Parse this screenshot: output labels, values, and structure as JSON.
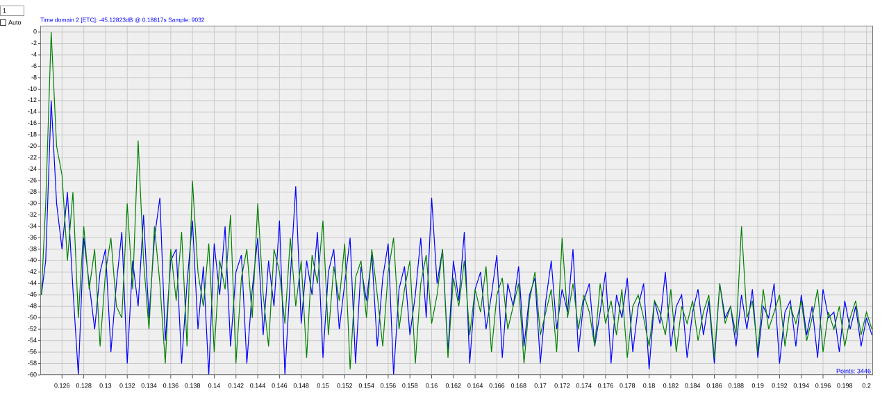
{
  "ui": {
    "input_value": "1",
    "checkbox_label": "Auto"
  },
  "chart_data": {
    "type": "line",
    "title": "Time domain 2 [ETC]:   -45.12823dB @ 0.18817s   Sample: 9032",
    "annotation": "Points: 3446",
    "x": [
      0.1241,
      0.1245,
      0.125,
      0.1255,
      0.126,
      0.1265,
      0.127,
      0.1275,
      0.128,
      0.1285,
      0.129,
      0.1295,
      0.13,
      0.1305,
      0.131,
      0.1315,
      0.132,
      0.1325,
      0.133,
      0.1335,
      0.134,
      0.1345,
      0.135,
      0.1355,
      0.136,
      0.1365,
      0.137,
      0.1375,
      0.138,
      0.1385,
      0.139,
      0.1395,
      0.14,
      0.1405,
      0.141,
      0.1415,
      0.142,
      0.1425,
      0.143,
      0.1435,
      0.144,
      0.1445,
      0.145,
      0.1455,
      0.146,
      0.1465,
      0.147,
      0.1475,
      0.148,
      0.1485,
      0.149,
      0.1495,
      0.15,
      0.1505,
      0.151,
      0.1515,
      0.152,
      0.1525,
      0.153,
      0.1535,
      0.154,
      0.1545,
      0.155,
      0.1555,
      0.156,
      0.1565,
      0.157,
      0.1575,
      0.158,
      0.1585,
      0.159,
      0.1595,
      0.16,
      0.1605,
      0.161,
      0.1615,
      0.162,
      0.1625,
      0.163,
      0.1635,
      0.164,
      0.1645,
      0.165,
      0.1655,
      0.166,
      0.1665,
      0.167,
      0.1675,
      0.168,
      0.1685,
      0.169,
      0.1695,
      0.17,
      0.1705,
      0.171,
      0.1715,
      0.172,
      0.1725,
      0.173,
      0.1735,
      0.174,
      0.1745,
      0.175,
      0.1755,
      0.176,
      0.1765,
      0.177,
      0.1775,
      0.178,
      0.1785,
      0.179,
      0.1795,
      0.18,
      0.1805,
      0.181,
      0.1815,
      0.182,
      0.1825,
      0.183,
      0.1835,
      0.184,
      0.1845,
      0.185,
      0.1855,
      0.186,
      0.1865,
      0.187,
      0.1875,
      0.188,
      0.1885,
      0.189,
      0.1895,
      0.19,
      0.1905,
      0.191,
      0.1915,
      0.192,
      0.1925,
      0.193,
      0.1935,
      0.194,
      0.1945,
      0.195,
      0.1955,
      0.196,
      0.1965,
      0.197,
      0.1975,
      0.198,
      0.1985,
      0.199,
      0.1995,
      0.2,
      0.2005
    ],
    "series": [
      {
        "color": "#0000ff",
        "values": [
          -46,
          -40,
          -12,
          -30,
          -38,
          -28,
          -45,
          -60,
          -36,
          -44,
          -52,
          -42,
          -38,
          -56,
          -44,
          -35,
          -58,
          -40,
          -48,
          -32,
          -50,
          -36,
          -29,
          -54,
          -40,
          -38,
          -58,
          -44,
          -33,
          -52,
          -41,
          -60,
          -37,
          -46,
          -34,
          -55,
          -42,
          -39,
          -58,
          -45,
          -36,
          -53,
          -40,
          -48,
          -33,
          -60,
          -43,
          -27,
          -51,
          -40,
          -46,
          -35,
          -57,
          -42,
          -38,
          -52,
          -44,
          -36,
          -58,
          -41,
          -47,
          -39,
          -55,
          -43,
          -37,
          -60,
          -45,
          -41,
          -53,
          -46,
          -36,
          -50,
          -29,
          -44,
          -38,
          -56,
          -40,
          -47,
          -35,
          -58,
          -45,
          -42,
          -52,
          -46,
          -39,
          -57,
          -44,
          -48,
          -41,
          -55,
          -46,
          -43,
          -58,
          -47,
          -40,
          -52,
          -45,
          -49,
          -38,
          -56,
          -47,
          -44,
          -55,
          -49,
          -42,
          -58,
          -46,
          -50,
          -43,
          -56,
          -48,
          -44,
          -59,
          -47,
          -51,
          -42,
          -55,
          -48,
          -46,
          -57,
          -49,
          -45,
          -53,
          -47,
          -58,
          -44,
          -50,
          -48,
          -55,
          -46,
          -52,
          -45,
          -57,
          -48,
          -50,
          -44,
          -58,
          -49,
          -47,
          -55,
          -46,
          -53,
          -48,
          -57,
          -45,
          -50,
          -49,
          -56,
          -47,
          -52,
          -48,
          -55,
          -50,
          -53
        ]
      },
      {
        "color": "#008000",
        "values": [
          -46,
          -30,
          0,
          -20,
          -25,
          -40,
          -28,
          -50,
          -34,
          -45,
          -38,
          -55,
          -42,
          -36,
          -48,
          -50,
          -30,
          -45,
          -19,
          -40,
          -52,
          -34,
          -44,
          -58,
          -38,
          -47,
          -35,
          -55,
          -26,
          -42,
          -48,
          -37,
          -56,
          -40,
          -45,
          -32,
          -58,
          -43,
          -38,
          -50,
          -30,
          -46,
          -55,
          -38,
          -42,
          -51,
          -36,
          -48,
          -40,
          -57,
          -39,
          -44,
          -33,
          -53,
          -41,
          -47,
          -37,
          -59,
          -43,
          -40,
          -50,
          -38,
          -46,
          -55,
          -42,
          -36,
          -52,
          -45,
          -40,
          -58,
          -44,
          -39,
          -51,
          -46,
          -38,
          -57,
          -43,
          -48,
          -40,
          -53,
          -45,
          -49,
          -41,
          -56,
          -46,
          -43,
          -52,
          -48,
          -44,
          -58,
          -47,
          -42,
          -53,
          -49,
          -45,
          -56,
          -36,
          -50,
          -44,
          -52,
          -46,
          -49,
          -55,
          -44,
          -51,
          -47,
          -53,
          -45,
          -57,
          -48,
          -46,
          -50,
          -55,
          -47,
          -49,
          -53,
          -45,
          -56,
          -48,
          -51,
          -47,
          -54,
          -49,
          -46,
          -57,
          -44,
          -51,
          -48,
          -53,
          -34,
          -50,
          -47,
          -56,
          -45,
          -52,
          -49,
          -46,
          -55,
          -48,
          -51,
          -47,
          -54,
          -50,
          -45,
          -56,
          -49,
          -52,
          -48,
          -55,
          -50,
          -47,
          -53,
          -49,
          -52
        ]
      }
    ],
    "xlim": [
      0.124,
      0.2006
    ],
    "ylim": [
      -60,
      1.1
    ],
    "xticks": [
      0.126,
      0.128,
      0.13,
      0.132,
      0.134,
      0.136,
      0.138,
      0.14,
      0.142,
      0.144,
      0.146,
      0.148,
      0.15,
      0.152,
      0.154,
      0.156,
      0.158,
      0.16,
      0.162,
      0.164,
      0.166,
      0.168,
      0.17,
      0.172,
      0.174,
      0.176,
      0.178,
      0.18,
      0.182,
      0.184,
      0.186,
      0.188,
      0.19,
      0.192,
      0.194,
      0.196,
      0.198,
      0.2
    ],
    "yticks": [
      0,
      -2,
      -4,
      -6,
      -8,
      -10,
      -12,
      -14,
      -16,
      -18,
      -20,
      -22,
      -24,
      -26,
      -28,
      -30,
      -32,
      -34,
      -36,
      -38,
      -40,
      -42,
      -44,
      -46,
      -48,
      -50,
      -52,
      -54,
      -56,
      -58,
      -60
    ],
    "grid": true
  }
}
